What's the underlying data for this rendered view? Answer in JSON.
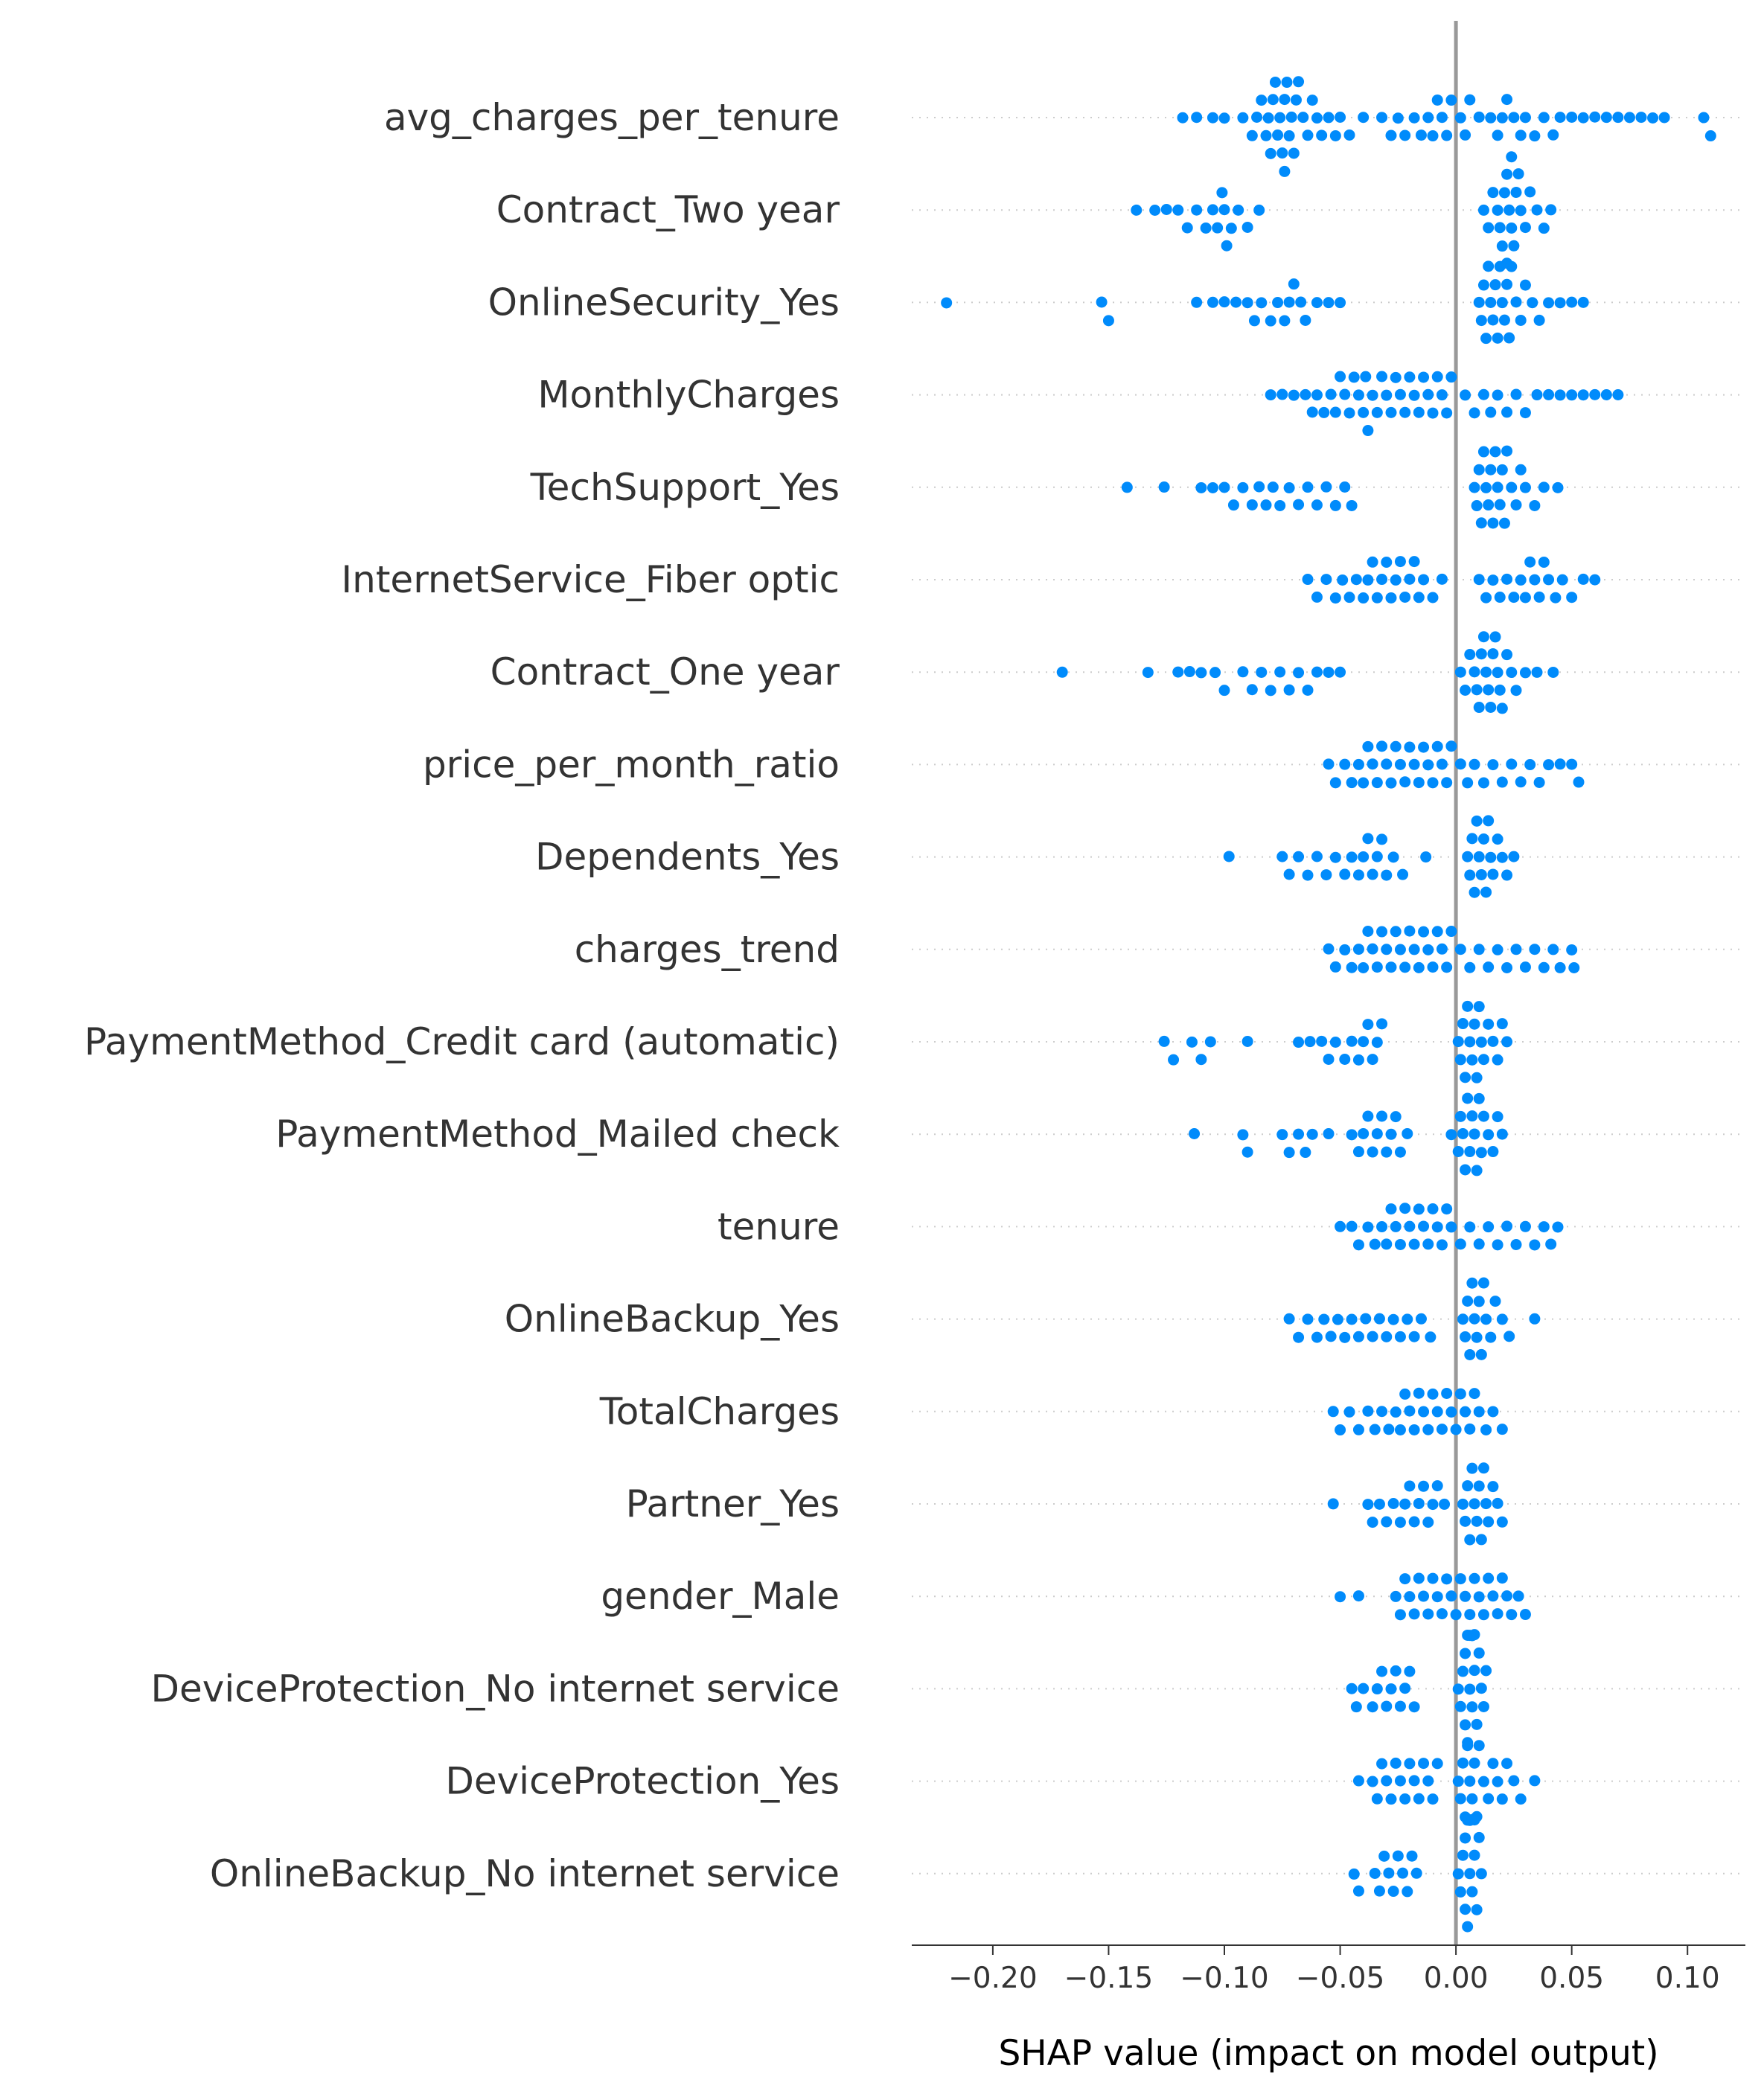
{
  "chart_data": {
    "type": "scatter",
    "subtype": "shap-beeswarm",
    "title": "",
    "xlabel": "SHAP value (impact on model output)",
    "ylabel": "",
    "xlim": [
      -0.235,
      0.125
    ],
    "x_ticks": [
      -0.2,
      -0.15,
      -0.1,
      -0.05,
      0.0,
      0.05,
      0.1
    ],
    "x_tick_labels": [
      "−0.20",
      "−0.15",
      "−0.10",
      "−0.05",
      "0.00",
      "0.05",
      "0.10"
    ],
    "zero_line": 0,
    "grid": "dotted-row-guides",
    "legend": "none",
    "colors": {
      "points": "#008bfb",
      "zero_line": "#999999",
      "guides": "#cccccc",
      "text": "#333333"
    },
    "features": [
      {
        "name": "avg_charges_per_tenure",
        "values": [
          -0.118,
          -0.112,
          -0.105,
          -0.1,
          -0.092,
          -0.088,
          -0.086,
          -0.084,
          -0.082,
          -0.081,
          -0.08,
          -0.079,
          -0.078,
          -0.077,
          -0.076,
          -0.075,
          -0.074,
          -0.074,
          -0.073,
          -0.072,
          -0.071,
          -0.07,
          -0.069,
          -0.068,
          -0.066,
          -0.064,
          -0.062,
          -0.06,
          -0.058,
          -0.055,
          -0.052,
          -0.05,
          -0.046,
          -0.04,
          -0.032,
          -0.028,
          -0.025,
          -0.022,
          -0.018,
          -0.015,
          -0.012,
          -0.01,
          -0.008,
          -0.006,
          -0.004,
          -0.002,
          0.002,
          0.004,
          0.006,
          0.01,
          0.015,
          0.018,
          0.02,
          0.022,
          0.025,
          0.028,
          0.03,
          0.034,
          0.038,
          0.042,
          0.045,
          0.05,
          0.055,
          0.06,
          0.065,
          0.07,
          0.075,
          0.08,
          0.085,
          0.09,
          0.107,
          0.11
        ]
      },
      {
        "name": "Contract_Two year",
        "values": [
          -0.138,
          -0.13,
          -0.125,
          -0.12,
          -0.116,
          -0.112,
          -0.108,
          -0.105,
          -0.103,
          -0.101,
          -0.1,
          -0.099,
          -0.097,
          -0.094,
          -0.09,
          -0.085,
          0.012,
          0.014,
          0.016,
          0.018,
          0.019,
          0.02,
          0.021,
          0.022,
          0.022,
          0.023,
          0.024,
          0.024,
          0.025,
          0.026,
          0.027,
          0.028,
          0.03,
          0.032,
          0.035,
          0.038,
          0.041
        ]
      },
      {
        "name": "OnlineSecurity_Yes",
        "values": [
          -0.22,
          -0.153,
          -0.15,
          -0.112,
          -0.105,
          -0.1,
          -0.095,
          -0.09,
          -0.087,
          -0.084,
          -0.08,
          -0.077,
          -0.074,
          -0.072,
          -0.07,
          -0.067,
          -0.065,
          -0.06,
          -0.055,
          -0.05,
          0.01,
          0.011,
          0.012,
          0.013,
          0.014,
          0.015,
          0.016,
          0.017,
          0.018,
          0.019,
          0.02,
          0.021,
          0.022,
          0.023,
          0.024,
          0.026,
          0.028,
          0.03,
          0.033,
          0.036,
          0.04,
          0.045,
          0.05,
          0.055
        ]
      },
      {
        "name": "MonthlyCharges",
        "values": [
          -0.08,
          -0.075,
          -0.07,
          -0.065,
          -0.062,
          -0.06,
          -0.057,
          -0.054,
          -0.052,
          -0.05,
          -0.048,
          -0.046,
          -0.044,
          -0.042,
          -0.04,
          -0.039,
          -0.038,
          -0.036,
          -0.034,
          -0.032,
          -0.03,
          -0.028,
          -0.026,
          -0.024,
          -0.022,
          -0.02,
          -0.018,
          -0.016,
          -0.014,
          -0.012,
          -0.01,
          -0.008,
          -0.006,
          -0.004,
          -0.002,
          0.004,
          0.008,
          0.012,
          0.015,
          0.018,
          0.022,
          0.026,
          0.03,
          0.035,
          0.04,
          0.045,
          0.05,
          0.055,
          0.06,
          0.065,
          0.07
        ]
      },
      {
        "name": "TechSupport_Yes",
        "values": [
          -0.142,
          -0.126,
          -0.11,
          -0.105,
          -0.1,
          -0.096,
          -0.092,
          -0.088,
          -0.085,
          -0.082,
          -0.079,
          -0.076,
          -0.072,
          -0.068,
          -0.064,
          -0.06,
          -0.056,
          -0.052,
          -0.048,
          -0.045,
          0.008,
          0.009,
          0.01,
          0.011,
          0.012,
          0.013,
          0.014,
          0.015,
          0.016,
          0.017,
          0.018,
          0.019,
          0.02,
          0.021,
          0.022,
          0.024,
          0.026,
          0.028,
          0.03,
          0.034,
          0.038,
          0.044
        ]
      },
      {
        "name": "InternetService_Fiber optic",
        "values": [
          -0.064,
          -0.06,
          -0.056,
          -0.052,
          -0.049,
          -0.046,
          -0.043,
          -0.04,
          -0.038,
          -0.036,
          -0.034,
          -0.032,
          -0.03,
          -0.028,
          -0.026,
          -0.024,
          -0.022,
          -0.02,
          -0.018,
          -0.016,
          -0.014,
          -0.01,
          -0.006,
          0.01,
          0.013,
          0.016,
          0.019,
          0.022,
          0.025,
          0.028,
          0.03,
          0.032,
          0.034,
          0.036,
          0.038,
          0.04,
          0.043,
          0.046,
          0.05,
          0.055,
          0.06
        ]
      },
      {
        "name": "Contract_One year",
        "values": [
          -0.17,
          -0.133,
          -0.12,
          -0.115,
          -0.11,
          -0.104,
          -0.1,
          -0.092,
          -0.088,
          -0.084,
          -0.08,
          -0.076,
          -0.072,
          -0.068,
          -0.064,
          -0.06,
          -0.055,
          -0.05,
          0.002,
          0.004,
          0.006,
          0.008,
          0.009,
          0.01,
          0.011,
          0.012,
          0.013,
          0.014,
          0.015,
          0.016,
          0.017,
          0.018,
          0.019,
          0.02,
          0.022,
          0.024,
          0.026,
          0.03,
          0.035,
          0.042
        ]
      },
      {
        "name": "price_per_month_ratio",
        "values": [
          -0.055,
          -0.052,
          -0.048,
          -0.045,
          -0.042,
          -0.04,
          -0.038,
          -0.036,
          -0.034,
          -0.032,
          -0.03,
          -0.028,
          -0.026,
          -0.024,
          -0.022,
          -0.02,
          -0.018,
          -0.016,
          -0.014,
          -0.012,
          -0.01,
          -0.008,
          -0.006,
          -0.004,
          -0.002,
          0.002,
          0.005,
          0.008,
          0.012,
          0.016,
          0.02,
          0.024,
          0.028,
          0.032,
          0.036,
          0.04,
          0.045,
          0.05,
          0.053
        ]
      },
      {
        "name": "Dependents_Yes",
        "values": [
          -0.098,
          -0.075,
          -0.072,
          -0.068,
          -0.064,
          -0.06,
          -0.056,
          -0.052,
          -0.048,
          -0.045,
          -0.042,
          -0.04,
          -0.038,
          -0.036,
          -0.034,
          -0.032,
          -0.03,
          -0.027,
          -0.023,
          -0.013,
          0.005,
          0.006,
          0.007,
          0.008,
          0.009,
          0.01,
          0.011,
          0.012,
          0.013,
          0.014,
          0.015,
          0.016,
          0.018,
          0.02,
          0.022,
          0.025
        ]
      },
      {
        "name": "charges_trend",
        "values": [
          -0.055,
          -0.052,
          -0.048,
          -0.045,
          -0.042,
          -0.04,
          -0.038,
          -0.036,
          -0.034,
          -0.032,
          -0.03,
          -0.028,
          -0.026,
          -0.024,
          -0.022,
          -0.02,
          -0.018,
          -0.016,
          -0.014,
          -0.012,
          -0.01,
          -0.008,
          -0.006,
          -0.004,
          -0.002,
          0.002,
          0.006,
          0.01,
          0.014,
          0.018,
          0.022,
          0.026,
          0.03,
          0.034,
          0.038,
          0.042,
          0.045,
          0.05,
          0.051
        ]
      },
      {
        "name": "PaymentMethod_Credit card (automatic)",
        "values": [
          -0.126,
          -0.122,
          -0.114,
          -0.11,
          -0.106,
          -0.09,
          -0.068,
          -0.063,
          -0.058,
          -0.055,
          -0.052,
          -0.048,
          -0.045,
          -0.042,
          -0.04,
          -0.038,
          -0.036,
          -0.034,
          -0.032,
          0.001,
          0.002,
          0.003,
          0.004,
          0.005,
          0.006,
          0.007,
          0.008,
          0.009,
          0.01,
          0.011,
          0.012,
          0.014,
          0.016,
          0.018,
          0.02,
          0.022
        ]
      },
      {
        "name": "PaymentMethod_Mailed check",
        "values": [
          -0.113,
          -0.092,
          -0.09,
          -0.075,
          -0.072,
          -0.068,
          -0.065,
          -0.062,
          -0.055,
          -0.045,
          -0.042,
          -0.04,
          -0.038,
          -0.036,
          -0.034,
          -0.032,
          -0.03,
          -0.028,
          -0.026,
          -0.024,
          -0.021,
          -0.002,
          0.001,
          0.002,
          0.003,
          0.004,
          0.005,
          0.006,
          0.007,
          0.008,
          0.009,
          0.01,
          0.011,
          0.012,
          0.014,
          0.016,
          0.018,
          0.02
        ]
      },
      {
        "name": "tenure",
        "values": [
          -0.05,
          -0.045,
          -0.042,
          -0.038,
          -0.035,
          -0.032,
          -0.03,
          -0.028,
          -0.026,
          -0.024,
          -0.022,
          -0.02,
          -0.018,
          -0.016,
          -0.014,
          -0.012,
          -0.01,
          -0.008,
          -0.006,
          -0.004,
          -0.002,
          0.002,
          0.006,
          0.01,
          0.014,
          0.018,
          0.022,
          0.026,
          0.03,
          0.034,
          0.038,
          0.041,
          0.044
        ]
      },
      {
        "name": "OnlineBackup_Yes",
        "values": [
          -0.072,
          -0.068,
          -0.064,
          -0.06,
          -0.057,
          -0.054,
          -0.051,
          -0.048,
          -0.045,
          -0.042,
          -0.039,
          -0.036,
          -0.033,
          -0.03,
          -0.027,
          -0.024,
          -0.021,
          -0.018,
          -0.015,
          -0.011,
          0.003,
          0.004,
          0.005,
          0.006,
          0.007,
          0.008,
          0.009,
          0.01,
          0.011,
          0.012,
          0.013,
          0.015,
          0.017,
          0.02,
          0.023,
          0.034
        ]
      },
      {
        "name": "TotalCharges",
        "values": [
          -0.053,
          -0.05,
          -0.046,
          -0.042,
          -0.038,
          -0.035,
          -0.032,
          -0.029,
          -0.026,
          -0.024,
          -0.022,
          -0.02,
          -0.018,
          -0.016,
          -0.014,
          -0.012,
          -0.01,
          -0.008,
          -0.006,
          -0.004,
          -0.002,
          0.0,
          0.002,
          0.004,
          0.006,
          0.008,
          0.01,
          0.013,
          0.016,
          0.02
        ]
      },
      {
        "name": "Partner_Yes",
        "values": [
          -0.053,
          -0.038,
          -0.036,
          -0.033,
          -0.03,
          -0.027,
          -0.024,
          -0.022,
          -0.02,
          -0.018,
          -0.016,
          -0.014,
          -0.012,
          -0.01,
          -0.008,
          -0.005,
          0.003,
          0.004,
          0.005,
          0.006,
          0.007,
          0.008,
          0.009,
          0.01,
          0.011,
          0.012,
          0.013,
          0.014,
          0.016,
          0.018,
          0.02
        ]
      },
      {
        "name": "gender_Male",
        "values": [
          -0.05,
          -0.042,
          -0.026,
          -0.024,
          -0.022,
          -0.02,
          -0.018,
          -0.016,
          -0.014,
          -0.012,
          -0.01,
          -0.008,
          -0.006,
          -0.004,
          -0.002,
          0.0,
          0.002,
          0.004,
          0.006,
          0.008,
          0.01,
          0.012,
          0.014,
          0.016,
          0.018,
          0.02,
          0.022,
          0.024,
          0.027,
          0.03
        ]
      },
      {
        "name": "DeviceProtection_No internet service",
        "values": [
          -0.045,
          -0.043,
          -0.04,
          -0.036,
          -0.034,
          -0.032,
          -0.03,
          -0.028,
          -0.026,
          -0.024,
          -0.022,
          -0.02,
          -0.018,
          0.001,
          0.002,
          0.003,
          0.004,
          0.004,
          0.005,
          0.005,
          0.006,
          0.006,
          0.007,
          0.007,
          0.008,
          0.008,
          0.009,
          0.01,
          0.011,
          0.012,
          0.013
        ]
      },
      {
        "name": "DeviceProtection_Yes",
        "values": [
          -0.042,
          -0.036,
          -0.034,
          -0.032,
          -0.03,
          -0.028,
          -0.026,
          -0.024,
          -0.022,
          -0.02,
          -0.018,
          -0.016,
          -0.014,
          -0.012,
          -0.01,
          -0.008,
          0.001,
          0.002,
          0.003,
          0.004,
          0.005,
          0.006,
          0.007,
          0.008,
          0.009,
          0.01,
          0.012,
          0.014,
          0.016,
          0.018,
          0.02,
          0.022,
          0.025,
          0.028,
          0.034
        ]
      },
      {
        "name": "OnlineBackup_No internet service",
        "values": [
          -0.044,
          -0.042,
          -0.035,
          -0.033,
          -0.031,
          -0.029,
          -0.027,
          -0.025,
          -0.023,
          -0.021,
          -0.019,
          -0.017,
          0.001,
          0.002,
          0.003,
          0.004,
          0.004,
          0.005,
          0.005,
          0.006,
          0.006,
          0.007,
          0.007,
          0.008,
          0.008,
          0.009,
          0.01,
          0.011
        ]
      }
    ]
  }
}
